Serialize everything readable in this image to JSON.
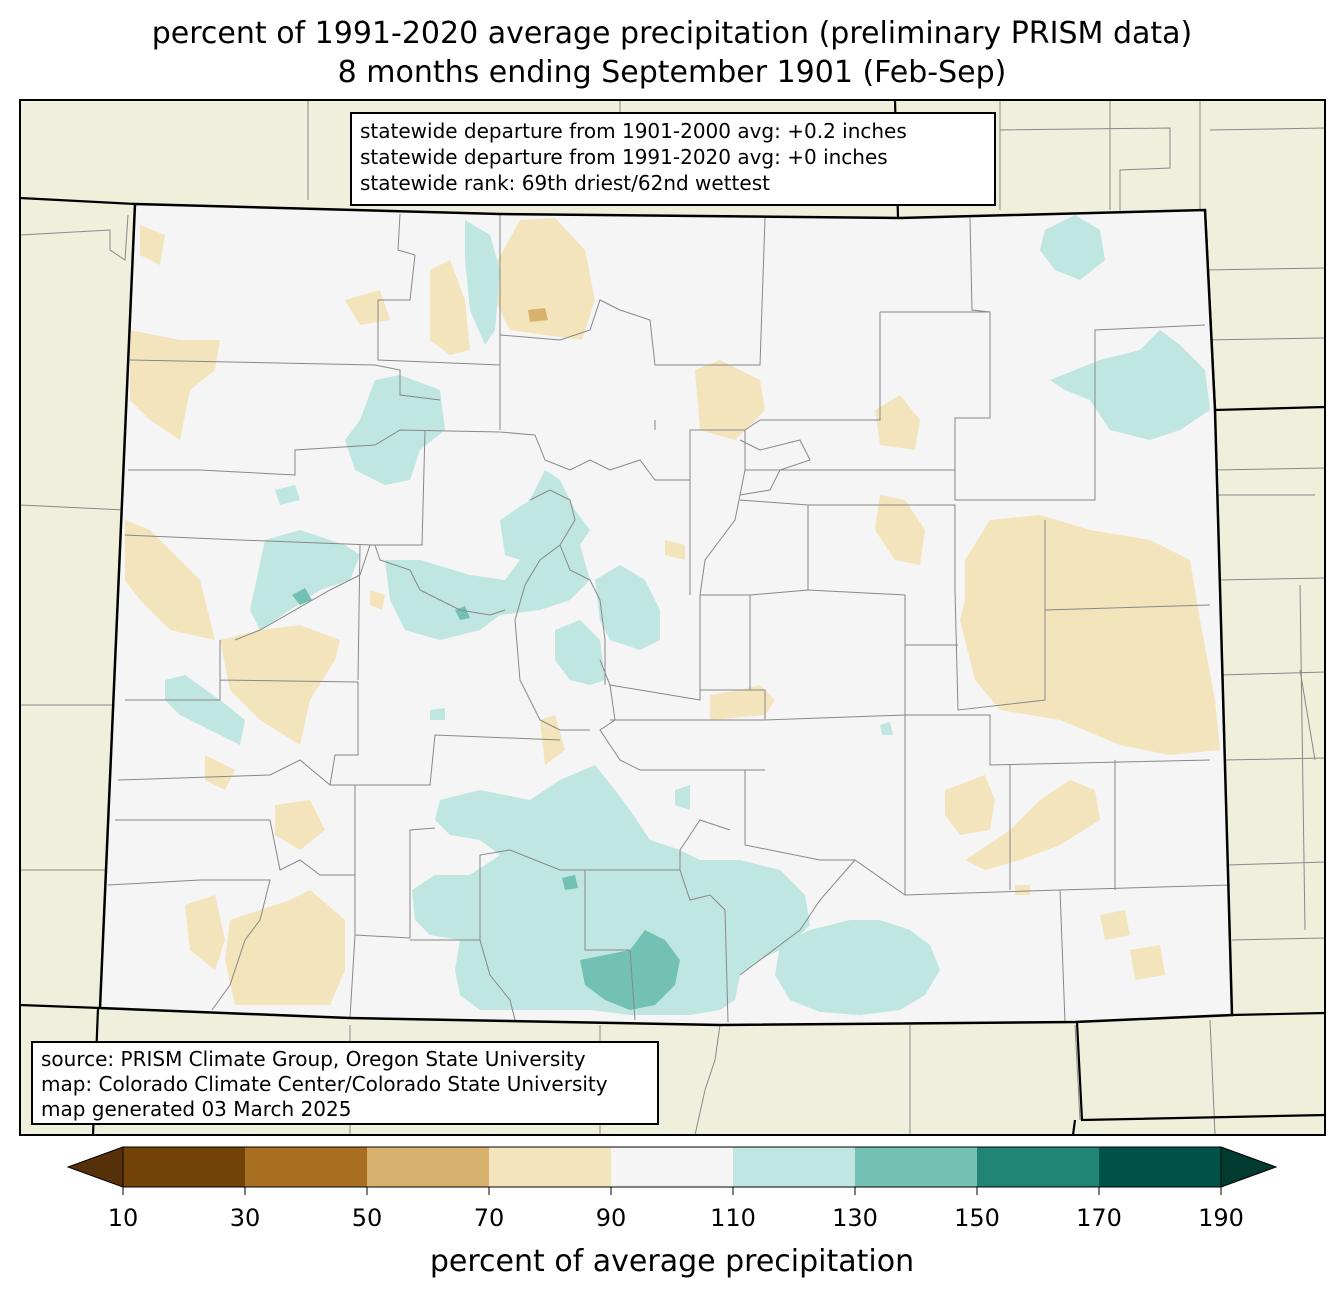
{
  "title": {
    "line1": "percent of 1991-2020 average precipitation (preliminary PRISM data)",
    "line2": "8 months ending September 1901 (Feb-Sep)"
  },
  "stats": {
    "line1": "statewide departure from 1901-2000 avg: +0.2 inches",
    "line2": "statewide departure from 1991-2020 avg: +0 inches",
    "line3": "statewide rank: 69th driest/62nd wettest"
  },
  "source": {
    "line1": "source: PRISM Climate Group, Oregon State University",
    "line2": "map: Colorado Climate Center/Colorado State University",
    "line3": "map generated 03 March 2025"
  },
  "colorbar": {
    "label": "percent of average precipitation",
    "ticks": [
      "10",
      "30",
      "50",
      "70",
      "90",
      "110",
      "130",
      "150",
      "170",
      "190"
    ],
    "colors": [
      "#734207",
      "#a86f22",
      "#d8b26c",
      "#f3e4bc",
      "#f4f5f4",
      "#bfe6e0",
      "#72c1b3",
      "#218476",
      "#00534a"
    ],
    "under_color": "#553009",
    "over_color": "#003a30"
  },
  "map_colors": {
    "background": "#f0efdc",
    "state_fill": "#f4f5f4",
    "dry_70_90": "#f3e4bc",
    "dry_50_70": "#d8b26c",
    "wet_110_130": "#bfe6e0",
    "wet_130_150": "#72c1b3",
    "wet_150_170": "#218476"
  }
}
